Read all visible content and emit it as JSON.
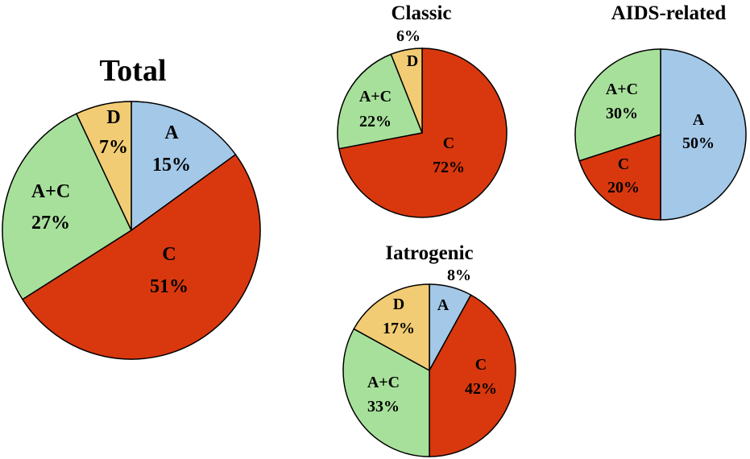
{
  "chart_data": [
    {
      "type": "pie",
      "title": "Total",
      "slices": [
        {
          "category": "A",
          "label": "A",
          "value": 15,
          "value_label": "15%",
          "color": "#a3c8e8"
        },
        {
          "category": "C",
          "label": "C",
          "value": 51,
          "value_label": "51%",
          "color": "#d9380e"
        },
        {
          "category": "A+C",
          "label": "A+C",
          "value": 27,
          "value_label": "27%",
          "color": "#a7e09b"
        },
        {
          "category": "D",
          "label": "D",
          "value": 7,
          "value_label": "7%",
          "color": "#f2cc74"
        }
      ]
    },
    {
      "type": "pie",
      "title": "Classic",
      "slices": [
        {
          "category": "C",
          "label": "C",
          "value": 72,
          "value_label": "72%",
          "color": "#d9380e"
        },
        {
          "category": "A+C",
          "label": "A+C",
          "value": 22,
          "value_label": "22%",
          "color": "#a7e09b"
        },
        {
          "category": "D",
          "label": "D",
          "value": 6,
          "value_label": "6%",
          "color": "#f2cc74"
        }
      ]
    },
    {
      "type": "pie",
      "title": "AIDS-related",
      "slices": [
        {
          "category": "A",
          "label": "A",
          "value": 50,
          "value_label": "50%",
          "color": "#a3c8e8"
        },
        {
          "category": "C",
          "label": "C",
          "value": 20,
          "value_label": "20%",
          "color": "#d9380e"
        },
        {
          "category": "A+C",
          "label": "A+C",
          "value": 30,
          "value_label": "30%",
          "color": "#a7e09b"
        }
      ]
    },
    {
      "type": "pie",
      "title": "Iatrogenic",
      "slices": [
        {
          "category": "A",
          "label": "A",
          "value": 8,
          "value_label": "8%",
          "color": "#a3c8e8"
        },
        {
          "category": "C",
          "label": "C",
          "value": 42,
          "value_label": "42%",
          "color": "#d9380e"
        },
        {
          "category": "A+C",
          "label": "A+C",
          "value": 33,
          "value_label": "33%",
          "color": "#a7e09b"
        },
        {
          "category": "D",
          "label": "D",
          "value": 17,
          "value_label": "17%",
          "color": "#f2cc74"
        }
      ]
    }
  ]
}
